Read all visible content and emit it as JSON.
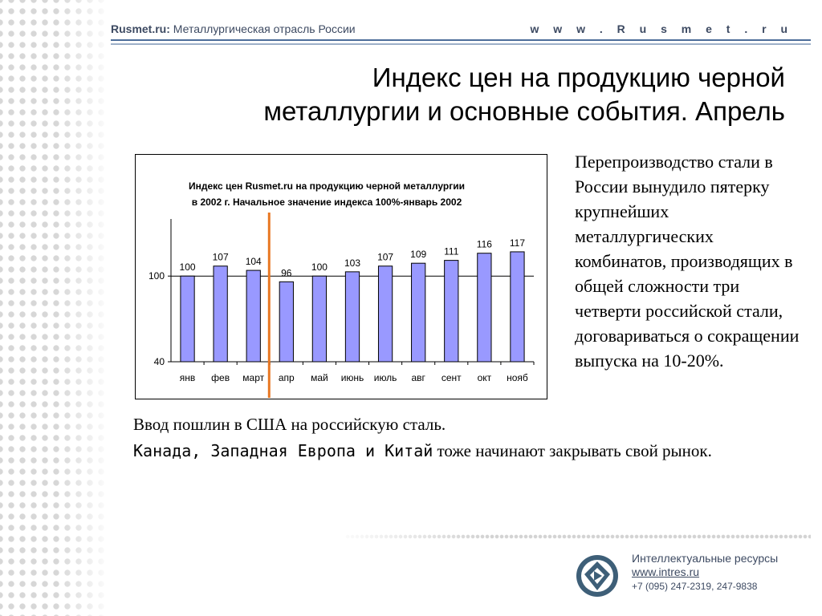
{
  "header": {
    "site_name": "Rusmet.ru:",
    "site_subtitle": "Металлургическая отрасль России",
    "url_label": "w w w . R u s m e t . r u"
  },
  "title": {
    "line1": "Индекс цен на продукцию черной",
    "line2": "металлургии и основные события. Апрель"
  },
  "chart_data": {
    "type": "bar",
    "title": "Индекс цен Rusmet.ru на продукцию черной металлургии",
    "subtitle": "в 2002 г. Начальное значение индекса 100%-январь 2002",
    "categories": [
      "янв",
      "фев",
      "март",
      "апр",
      "май",
      "июнь",
      "июль",
      "авг",
      "сент",
      "окт",
      "нояб"
    ],
    "values": [
      100,
      107,
      104,
      96,
      100,
      103,
      107,
      109,
      111,
      116,
      117
    ],
    "ylim": [
      40,
      140
    ],
    "yticks": [
      40,
      100
    ],
    "gridlines": [
      100
    ],
    "bar_color": "#9999ff",
    "marker_color": "#e87722",
    "marker_between": [
      "март",
      "апр"
    ]
  },
  "right_text": "Перепроизводство стали в России вынудило пятерку крупнейших металлургических комбинатов, производящих в общей сложности три четверти российской стали, договариваться о сокращении выпуска на 10-20%.",
  "bottom": {
    "line1": "Ввод пошлин в США на российскую сталь.",
    "line2_emph": "Канада, Западная Европа и Китай",
    "line2_rest": " тоже начинают закрывать свой рынок."
  },
  "footer": {
    "org": "Интеллектуальные ресурсы",
    "url": "www.intres.ru",
    "phone": "+7 (095) 247-2319, 247-9838",
    "logo_icon": "intres-logo-icon"
  },
  "colors": {
    "header_text": "#3d4a62",
    "rule_dark": "#4d6d9a",
    "rule_light": "#9db0c8"
  }
}
